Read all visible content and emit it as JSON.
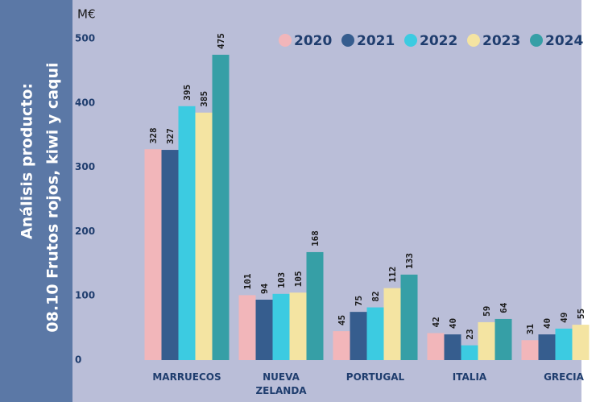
{
  "sidebar": {
    "line1": "Análisis producto:",
    "line2": "08.10 Frutos rojos, kiwi y caqui"
  },
  "chart_data": {
    "type": "bar",
    "ylabel": "M€",
    "categories": [
      "MARRUECOS",
      "NUEVA ZELANDA",
      "PORTUGAL",
      "ITALIA",
      "GRECIA"
    ],
    "series": [
      {
        "name": "2020",
        "color": "#f2b6ba",
        "values": [
          328,
          101,
          45,
          42,
          31
        ]
      },
      {
        "name": "2021",
        "color": "#365d8e",
        "values": [
          327,
          94,
          75,
          40,
          40
        ]
      },
      {
        "name": "2022",
        "color": "#3ccbe1",
        "values": [
          395,
          103,
          82,
          23,
          49
        ]
      },
      {
        "name": "2023",
        "color": "#f4e4a2",
        "values": [
          385,
          105,
          112,
          59,
          55
        ]
      },
      {
        "name": "2024",
        "color": "#369fa6",
        "values": [
          475,
          168,
          133,
          64,
          null
        ]
      }
    ],
    "ylim": [
      0,
      500
    ],
    "yticks": [
      0,
      100,
      200,
      300,
      400,
      500
    ]
  }
}
